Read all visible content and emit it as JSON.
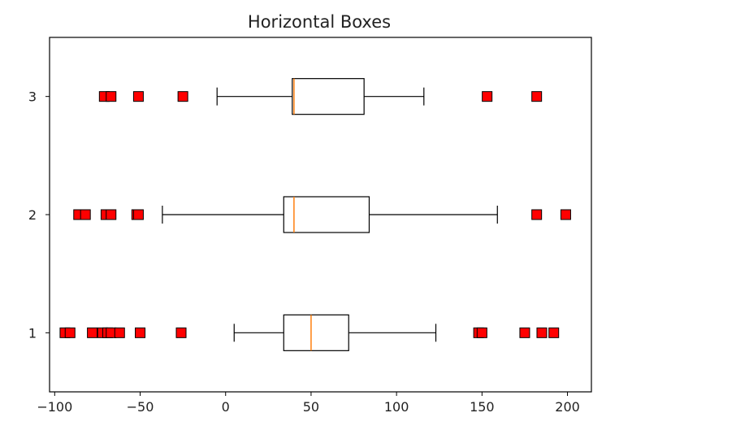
{
  "chart_data": {
    "type": "boxplot",
    "orientation": "horizontal",
    "title": "Horizontal Boxes",
    "xlabel": "",
    "ylabel": "",
    "xlim": [
      -103,
      214
    ],
    "ylim": [
      0.5,
      3.5
    ],
    "grid": false,
    "x_ticks": [
      -100,
      -50,
      0,
      50,
      100,
      150,
      200
    ],
    "x_tick_labels": [
      "−100",
      "−50",
      "0",
      "50",
      "100",
      "150",
      "200"
    ],
    "y_ticks": [
      1,
      2,
      3
    ],
    "y_tick_labels": [
      "1",
      "2",
      "3"
    ],
    "colors": {
      "box": "#000000",
      "median": "#ff7f0e",
      "flier_fill": "#ff0000",
      "flier_edge": "#000000"
    },
    "flier_marker": "square",
    "boxes": [
      {
        "position": 1,
        "whisker_low": 5,
        "q1": 34,
        "median": 50,
        "q3": 72,
        "whisker_high": 123,
        "fliers": [
          -94,
          -91,
          -78,
          -72,
          -69,
          -67,
          -62,
          -50,
          -26,
          148,
          150,
          175,
          185,
          192
        ]
      },
      {
        "position": 2,
        "whisker_low": -37,
        "q1": 34,
        "median": 40,
        "q3": 84,
        "whisker_high": 159,
        "fliers": [
          -86,
          -82,
          -70,
          -67,
          -52,
          -51,
          182,
          199
        ]
      },
      {
        "position": 3,
        "whisker_low": -5,
        "q1": 39,
        "median": 40,
        "q3": 81,
        "whisker_high": 116,
        "fliers": [
          -71,
          -67,
          -51,
          -25,
          153,
          182
        ]
      }
    ]
  }
}
